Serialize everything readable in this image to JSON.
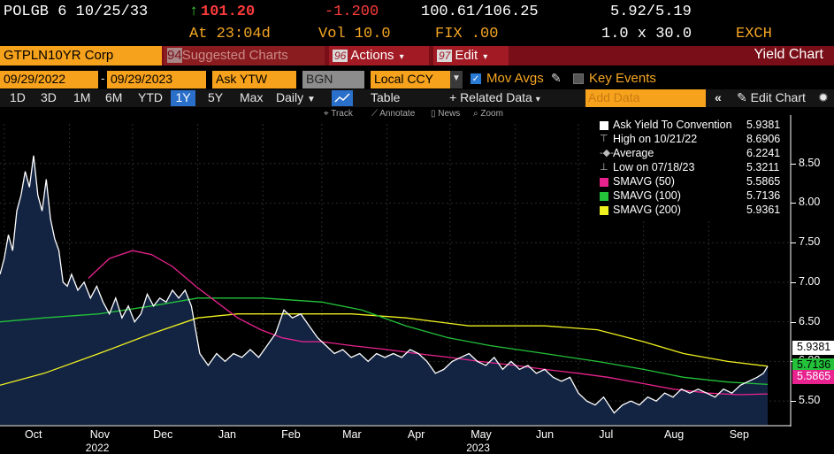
{
  "header": {
    "row1": {
      "ticker": "POLGB 6 10/25/33",
      "arrow": "↑",
      "price": "101.20",
      "change": "-1.200",
      "bid_ask": "100.61/106.25",
      "yields": "5.92/5.19"
    },
    "row2": {
      "at": "At 23:04d",
      "vol": "Vol 10.0",
      "fix": "FIX .00",
      "size": "1.0 x 30.0",
      "exch": "EXCH"
    }
  },
  "function_bar": {
    "security": "GTPLN10YR Corp",
    "suggested_num": "94",
    "suggested_label": "Suggested Charts",
    "actions_num": "96",
    "actions_label": "Actions",
    "edit_num": "97",
    "edit_label": "Edit",
    "title": "Yield Chart"
  },
  "params": {
    "start_date": "09/29/2022",
    "dash": "-",
    "end_date": "09/29/2023",
    "field": "Ask YTW",
    "source": "BGN",
    "currency": "Local CCY",
    "mov_avgs_label": "Mov Avgs",
    "key_events_label": "Key Events"
  },
  "toolbar": {
    "periods": [
      "1D",
      "3D",
      "1M",
      "6M",
      "YTD",
      "1Y",
      "5Y",
      "Max"
    ],
    "active_period": "1Y",
    "frequency": "Daily",
    "table_label": "Table",
    "related_label": "+ Related Data",
    "add_data_placeholder": "Add Data",
    "edit_chart_label": "Edit Chart"
  },
  "chart_tools": {
    "track": "Track",
    "annotate": "Annotate",
    "news": "News",
    "zoom": "Zoom"
  },
  "legend": [
    {
      "name": "Ask Yield To Convention",
      "value": "5.9381",
      "color": "#ffffff",
      "kind": "swatch"
    },
    {
      "name": "High on 10/21/22",
      "value": "8.6906",
      "color": "#bbbbbb",
      "kind": "high"
    },
    {
      "name": "Average",
      "value": "6.2241",
      "color": "#bbbbbb",
      "kind": "avg"
    },
    {
      "name": "Low on 07/18/23",
      "value": "5.3211",
      "color": "#bbbbbb",
      "kind": "low"
    },
    {
      "name": "SMAVG (50)",
      "value": "5.5865",
      "color": "#e8238f",
      "kind": "swatch"
    },
    {
      "name": "SMAVG (100)",
      "value": "5.7136",
      "color": "#23c23a",
      "kind": "swatch"
    },
    {
      "name": "SMAVG (200)",
      "value": "5.9361",
      "color": "#f0f020",
      "kind": "swatch"
    }
  ],
  "flags": [
    {
      "value": "5.9381",
      "bg": "#ffffff",
      "fg": "#000000"
    },
    {
      "value": "5.7136",
      "bg": "#23c23a",
      "fg": "#000000"
    },
    {
      "value": "5.5865",
      "bg": "#e8238f",
      "fg": "#ffffff"
    }
  ],
  "chart_data": {
    "type": "line",
    "title": "",
    "ylim": [
      5.2,
      9.0
    ],
    "y_ticks": [
      5.5,
      6.0,
      6.5,
      7.0,
      7.5,
      8.0,
      8.5
    ],
    "y_tick_labels": [
      "5.50",
      "6.00",
      "6.50",
      "7.00",
      "7.50",
      "8.00",
      "8.50"
    ],
    "x_start": "2022-09-29",
    "x_end": "2023-09-29",
    "month_labels": [
      {
        "date": "2022-10-15",
        "label": "Oct"
      },
      {
        "date": "2022-11-15",
        "label": "Nov"
      },
      {
        "date": "2022-12-15",
        "label": "Dec"
      },
      {
        "date": "2023-01-15",
        "label": "Jan"
      },
      {
        "date": "2023-02-14",
        "label": "Feb"
      },
      {
        "date": "2023-03-15",
        "label": "Mar"
      },
      {
        "date": "2023-04-15",
        "label": "Apr"
      },
      {
        "date": "2023-05-15",
        "label": "May"
      },
      {
        "date": "2023-06-15",
        "label": "Jun"
      },
      {
        "date": "2023-07-15",
        "label": "Jul"
      },
      {
        "date": "2023-08-15",
        "label": "Aug"
      },
      {
        "date": "2023-09-15",
        "label": "Sep"
      }
    ],
    "year_labels": [
      {
        "date": "2022-11-15",
        "label": "2022"
      },
      {
        "date": "2023-05-15",
        "label": "2023"
      }
    ],
    "series": [
      {
        "name": "Ask Yield To Convention",
        "color": "#ffffff",
        "fill": "#132443",
        "points": [
          [
            "2022-09-29",
            7.1
          ],
          [
            "2022-10-01",
            7.3
          ],
          [
            "2022-10-03",
            7.6
          ],
          [
            "2022-10-05",
            7.4
          ],
          [
            "2022-10-07",
            7.9
          ],
          [
            "2022-10-09",
            8.1
          ],
          [
            "2022-10-11",
            8.4
          ],
          [
            "2022-10-13",
            8.2
          ],
          [
            "2022-10-15",
            8.6
          ],
          [
            "2022-10-17",
            8.1
          ],
          [
            "2022-10-19",
            7.9
          ],
          [
            "2022-10-21",
            8.3
          ],
          [
            "2022-10-23",
            7.8
          ],
          [
            "2022-10-25",
            7.55
          ],
          [
            "2022-10-27",
            7.4
          ],
          [
            "2022-10-29",
            7.0
          ],
          [
            "2022-10-31",
            6.95
          ],
          [
            "2022-11-02",
            7.1
          ],
          [
            "2022-11-05",
            6.9
          ],
          [
            "2022-11-08",
            7.0
          ],
          [
            "2022-11-11",
            6.8
          ],
          [
            "2022-11-14",
            6.95
          ],
          [
            "2022-11-17",
            6.75
          ],
          [
            "2022-11-20",
            6.6
          ],
          [
            "2022-11-23",
            6.8
          ],
          [
            "2022-11-26",
            6.55
          ],
          [
            "2022-11-29",
            6.7
          ],
          [
            "2022-12-02",
            6.5
          ],
          [
            "2022-12-05",
            6.6
          ],
          [
            "2022-12-08",
            6.85
          ],
          [
            "2022-12-11",
            6.7
          ],
          [
            "2022-12-14",
            6.8
          ],
          [
            "2022-12-17",
            6.75
          ],
          [
            "2022-12-20",
            6.9
          ],
          [
            "2022-12-23",
            6.8
          ],
          [
            "2022-12-26",
            6.9
          ],
          [
            "2022-12-29",
            6.7
          ],
          [
            "2023-01-02",
            6.1
          ],
          [
            "2023-01-06",
            5.95
          ],
          [
            "2023-01-10",
            6.1
          ],
          [
            "2023-01-14",
            6.0
          ],
          [
            "2023-01-18",
            6.1
          ],
          [
            "2023-01-22",
            6.05
          ],
          [
            "2023-01-26",
            6.15
          ],
          [
            "2023-01-30",
            6.05
          ],
          [
            "2023-02-03",
            6.2
          ],
          [
            "2023-02-07",
            6.35
          ],
          [
            "2023-02-11",
            6.65
          ],
          [
            "2023-02-15",
            6.55
          ],
          [
            "2023-02-19",
            6.6
          ],
          [
            "2023-02-23",
            6.45
          ],
          [
            "2023-02-27",
            6.3
          ],
          [
            "2023-03-03",
            6.2
          ],
          [
            "2023-03-07",
            6.1
          ],
          [
            "2023-03-11",
            6.15
          ],
          [
            "2023-03-15",
            6.05
          ],
          [
            "2023-03-19",
            6.1
          ],
          [
            "2023-03-23",
            6.0
          ],
          [
            "2023-03-27",
            6.1
          ],
          [
            "2023-03-31",
            6.05
          ],
          [
            "2023-04-04",
            6.1
          ],
          [
            "2023-04-08",
            6.05
          ],
          [
            "2023-04-12",
            6.15
          ],
          [
            "2023-04-16",
            6.1
          ],
          [
            "2023-04-20",
            6.0
          ],
          [
            "2023-04-24",
            5.85
          ],
          [
            "2023-04-28",
            5.9
          ],
          [
            "2023-05-02",
            6.0
          ],
          [
            "2023-05-06",
            6.05
          ],
          [
            "2023-05-10",
            6.1
          ],
          [
            "2023-05-14",
            6.0
          ],
          [
            "2023-05-18",
            5.95
          ],
          [
            "2023-05-22",
            6.05
          ],
          [
            "2023-05-26",
            5.9
          ],
          [
            "2023-05-30",
            6.0
          ],
          [
            "2023-06-03",
            5.9
          ],
          [
            "2023-06-07",
            5.95
          ],
          [
            "2023-06-11",
            5.85
          ],
          [
            "2023-06-15",
            5.9
          ],
          [
            "2023-06-19",
            5.8
          ],
          [
            "2023-06-23",
            5.75
          ],
          [
            "2023-06-27",
            5.8
          ],
          [
            "2023-07-01",
            5.6
          ],
          [
            "2023-07-05",
            5.5
          ],
          [
            "2023-07-09",
            5.45
          ],
          [
            "2023-07-13",
            5.55
          ],
          [
            "2023-07-18",
            5.35
          ],
          [
            "2023-07-22",
            5.45
          ],
          [
            "2023-07-26",
            5.5
          ],
          [
            "2023-07-30",
            5.45
          ],
          [
            "2023-08-03",
            5.55
          ],
          [
            "2023-08-07",
            5.5
          ],
          [
            "2023-08-11",
            5.6
          ],
          [
            "2023-08-15",
            5.55
          ],
          [
            "2023-08-19",
            5.65
          ],
          [
            "2023-08-23",
            5.6
          ],
          [
            "2023-08-27",
            5.65
          ],
          [
            "2023-08-31",
            5.6
          ],
          [
            "2023-09-04",
            5.55
          ],
          [
            "2023-09-08",
            5.65
          ],
          [
            "2023-09-12",
            5.6
          ],
          [
            "2023-09-16",
            5.7
          ],
          [
            "2023-09-20",
            5.75
          ],
          [
            "2023-09-24",
            5.8
          ],
          [
            "2023-09-27",
            5.85
          ],
          [
            "2023-09-29",
            5.94
          ]
        ]
      },
      {
        "name": "SMAVG (50)",
        "color": "#e8238f",
        "points": [
          [
            "2022-11-10",
            7.05
          ],
          [
            "2022-11-20",
            7.3
          ],
          [
            "2022-12-01",
            7.4
          ],
          [
            "2022-12-10",
            7.35
          ],
          [
            "2022-12-20",
            7.2
          ],
          [
            "2022-12-31",
            6.95
          ],
          [
            "2023-01-10",
            6.75
          ],
          [
            "2023-01-20",
            6.55
          ],
          [
            "2023-01-31",
            6.4
          ],
          [
            "2023-02-10",
            6.3
          ],
          [
            "2023-02-20",
            6.25
          ],
          [
            "2023-03-01",
            6.25
          ],
          [
            "2023-03-15",
            6.2
          ],
          [
            "2023-04-01",
            6.15
          ],
          [
            "2023-04-15",
            6.1
          ],
          [
            "2023-05-01",
            6.05
          ],
          [
            "2023-05-15",
            6.0
          ],
          [
            "2023-06-01",
            5.95
          ],
          [
            "2023-06-15",
            5.9
          ],
          [
            "2023-07-01",
            5.85
          ],
          [
            "2023-07-15",
            5.8
          ],
          [
            "2023-08-01",
            5.72
          ],
          [
            "2023-08-15",
            5.65
          ],
          [
            "2023-09-01",
            5.6
          ],
          [
            "2023-09-15",
            5.58
          ],
          [
            "2023-09-29",
            5.59
          ]
        ]
      },
      {
        "name": "SMAVG (100)",
        "color": "#23c23a",
        "points": [
          [
            "2022-09-29",
            6.5
          ],
          [
            "2022-10-20",
            6.55
          ],
          [
            "2022-11-15",
            6.6
          ],
          [
            "2022-12-10",
            6.7
          ],
          [
            "2023-01-01",
            6.8
          ],
          [
            "2023-02-01",
            6.8
          ],
          [
            "2023-03-01",
            6.75
          ],
          [
            "2023-03-20",
            6.65
          ],
          [
            "2023-04-10",
            6.45
          ],
          [
            "2023-04-30",
            6.3
          ],
          [
            "2023-05-20",
            6.2
          ],
          [
            "2023-06-15",
            6.1
          ],
          [
            "2023-07-10",
            6.0
          ],
          [
            "2023-08-01",
            5.9
          ],
          [
            "2023-08-20",
            5.8
          ],
          [
            "2023-09-10",
            5.74
          ],
          [
            "2023-09-29",
            5.71
          ]
        ]
      },
      {
        "name": "SMAVG (200)",
        "color": "#f0f020",
        "points": [
          [
            "2022-09-29",
            5.7
          ],
          [
            "2022-10-20",
            5.85
          ],
          [
            "2022-11-15",
            6.1
          ],
          [
            "2022-12-10",
            6.35
          ],
          [
            "2023-01-01",
            6.55
          ],
          [
            "2023-01-20",
            6.6
          ],
          [
            "2023-02-15",
            6.6
          ],
          [
            "2023-03-15",
            6.6
          ],
          [
            "2023-04-10",
            6.55
          ],
          [
            "2023-05-10",
            6.45
          ],
          [
            "2023-06-15",
            6.45
          ],
          [
            "2023-07-10",
            6.4
          ],
          [
            "2023-08-01",
            6.25
          ],
          [
            "2023-08-20",
            6.1
          ],
          [
            "2023-09-10",
            6.0
          ],
          [
            "2023-09-29",
            5.94
          ]
        ]
      }
    ]
  }
}
